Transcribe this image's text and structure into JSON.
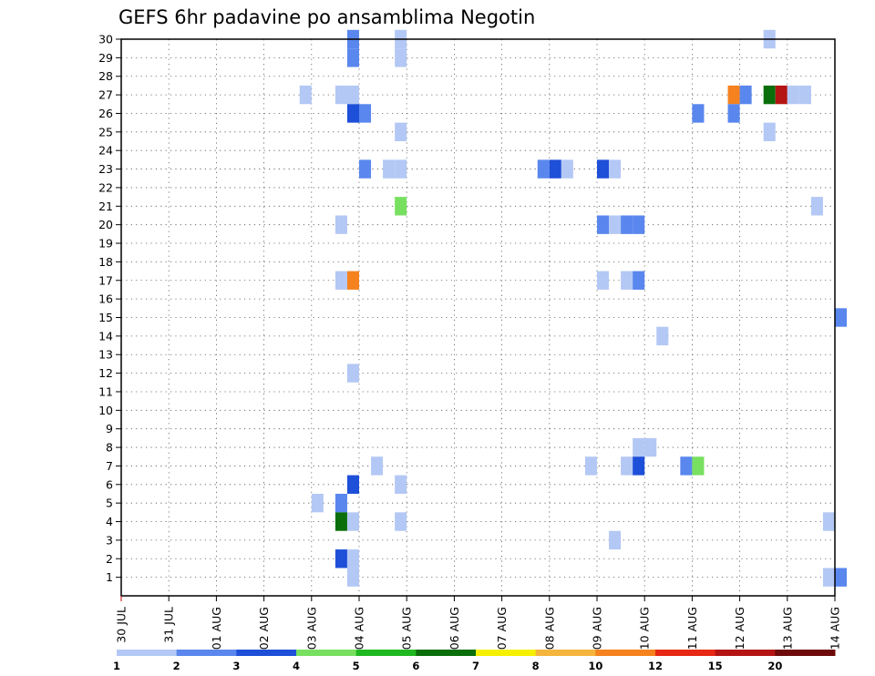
{
  "chart_data": {
    "type": "heatmap",
    "title": "GEFS 6hr padavine po ansamblima Negotin",
    "x_tick_labels": [
      "30 JUL",
      "31 JUL",
      "01 AUG",
      "02 AUG",
      "03 AUG",
      "04 AUG",
      "05 AUG",
      "06 AUG",
      "07 AUG",
      "08 AUG",
      "09 AUG",
      "10 AUG",
      "11 AUG",
      "12 AUG",
      "13 AUG",
      "14 AUG"
    ],
    "x_range_days": [
      0,
      15
    ],
    "y_tick_labels": [
      "1",
      "2",
      "3",
      "4",
      "5",
      "6",
      "7",
      "8",
      "9",
      "10",
      "11",
      "12",
      "13",
      "14",
      "15",
      "16",
      "17",
      "18",
      "19",
      "20",
      "21",
      "22",
      "23",
      "24",
      "25",
      "26",
      "27",
      "28",
      "29",
      "30"
    ],
    "y_range": [
      0,
      30
    ],
    "grid": true,
    "legend": {
      "placement": "bottom",
      "labels": [
        "1",
        "2",
        "3",
        "4",
        "5",
        "6",
        "7",
        "8",
        "10",
        "12",
        "15",
        "20"
      ],
      "colors": [
        "#b4c8f5",
        "#5a87ee",
        "#1e4fd8",
        "#78e060",
        "#20b820",
        "#0a6e0a",
        "#f5f000",
        "#f5b43c",
        "#f5821e",
        "#e62814",
        "#b41414",
        "#6e0a0a"
      ]
    },
    "cell_days": 0.25,
    "cells": [
      {
        "member": 30,
        "day": 4.75,
        "value": 2
      },
      {
        "member": 30,
        "day": 5.75,
        "value": 1
      },
      {
        "member": 30,
        "day": 13.5,
        "value": 1
      },
      {
        "member": 29,
        "day": 4.75,
        "value": 2
      },
      {
        "member": 29,
        "day": 5.75,
        "value": 1
      },
      {
        "member": 27,
        "day": 3.75,
        "value": 1
      },
      {
        "member": 27,
        "day": 4.5,
        "value": 1
      },
      {
        "member": 27,
        "day": 4.75,
        "value": 1
      },
      {
        "member": 27,
        "day": 12.75,
        "value": 10
      },
      {
        "member": 27,
        "day": 13.0,
        "value": 2
      },
      {
        "member": 27,
        "day": 13.5,
        "value": 6
      },
      {
        "member": 27,
        "day": 13.75,
        "value": 15
      },
      {
        "member": 27,
        "day": 14.0,
        "value": 1
      },
      {
        "member": 27,
        "day": 14.25,
        "value": 1
      },
      {
        "member": 26,
        "day": 4.75,
        "value": 3
      },
      {
        "member": 26,
        "day": 5.0,
        "value": 2
      },
      {
        "member": 26,
        "day": 12.0,
        "value": 2
      },
      {
        "member": 26,
        "day": 12.75,
        "value": 2
      },
      {
        "member": 25,
        "day": 5.75,
        "value": 1
      },
      {
        "member": 25,
        "day": 13.5,
        "value": 1
      },
      {
        "member": 23,
        "day": 5.0,
        "value": 2
      },
      {
        "member": 23,
        "day": 5.5,
        "value": 1
      },
      {
        "member": 23,
        "day": 5.75,
        "value": 1
      },
      {
        "member": 23,
        "day": 8.75,
        "value": 2
      },
      {
        "member": 23,
        "day": 9.0,
        "value": 3
      },
      {
        "member": 23,
        "day": 9.25,
        "value": 1
      },
      {
        "member": 23,
        "day": 10.0,
        "value": 3
      },
      {
        "member": 23,
        "day": 10.25,
        "value": 1
      },
      {
        "member": 21,
        "day": 5.75,
        "value": 4
      },
      {
        "member": 21,
        "day": 14.5,
        "value": 1
      },
      {
        "member": 20,
        "day": 4.5,
        "value": 1
      },
      {
        "member": 20,
        "day": 10.0,
        "value": 2
      },
      {
        "member": 20,
        "day": 10.25,
        "value": 1
      },
      {
        "member": 20,
        "day": 10.5,
        "value": 2
      },
      {
        "member": 20,
        "day": 10.75,
        "value": 2
      },
      {
        "member": 17,
        "day": 4.5,
        "value": 1
      },
      {
        "member": 17,
        "day": 4.75,
        "value": 10
      },
      {
        "member": 17,
        "day": 10.0,
        "value": 1
      },
      {
        "member": 17,
        "day": 10.5,
        "value": 1
      },
      {
        "member": 17,
        "day": 10.75,
        "value": 2
      },
      {
        "member": 15,
        "day": 15.0,
        "value": 2
      },
      {
        "member": 14,
        "day": 11.25,
        "value": 1
      },
      {
        "member": 12,
        "day": 4.75,
        "value": 1
      },
      {
        "member": 8,
        "day": 10.75,
        "value": 1
      },
      {
        "member": 8,
        "day": 11.0,
        "value": 1
      },
      {
        "member": 7,
        "day": 5.25,
        "value": 1
      },
      {
        "member": 7,
        "day": 9.75,
        "value": 1
      },
      {
        "member": 7,
        "day": 10.5,
        "value": 1
      },
      {
        "member": 7,
        "day": 10.75,
        "value": 3
      },
      {
        "member": 7,
        "day": 11.75,
        "value": 2
      },
      {
        "member": 7,
        "day": 12.0,
        "value": 4
      },
      {
        "member": 6,
        "day": 4.75,
        "value": 3
      },
      {
        "member": 6,
        "day": 5.75,
        "value": 1
      },
      {
        "member": 5,
        "day": 4.0,
        "value": 1
      },
      {
        "member": 5,
        "day": 4.5,
        "value": 2
      },
      {
        "member": 4,
        "day": 4.5,
        "value": 6
      },
      {
        "member": 4,
        "day": 4.75,
        "value": 1
      },
      {
        "member": 4,
        "day": 5.75,
        "value": 1
      },
      {
        "member": 4,
        "day": 14.75,
        "value": 1
      },
      {
        "member": 3,
        "day": 10.25,
        "value": 1
      },
      {
        "member": 2,
        "day": 4.5,
        "value": 3
      },
      {
        "member": 2,
        "day": 4.75,
        "value": 1
      },
      {
        "member": 1,
        "day": 4.75,
        "value": 1
      },
      {
        "member": 1,
        "day": 14.75,
        "value": 1
      },
      {
        "member": 1,
        "day": 15.0,
        "value": 2
      }
    ]
  }
}
